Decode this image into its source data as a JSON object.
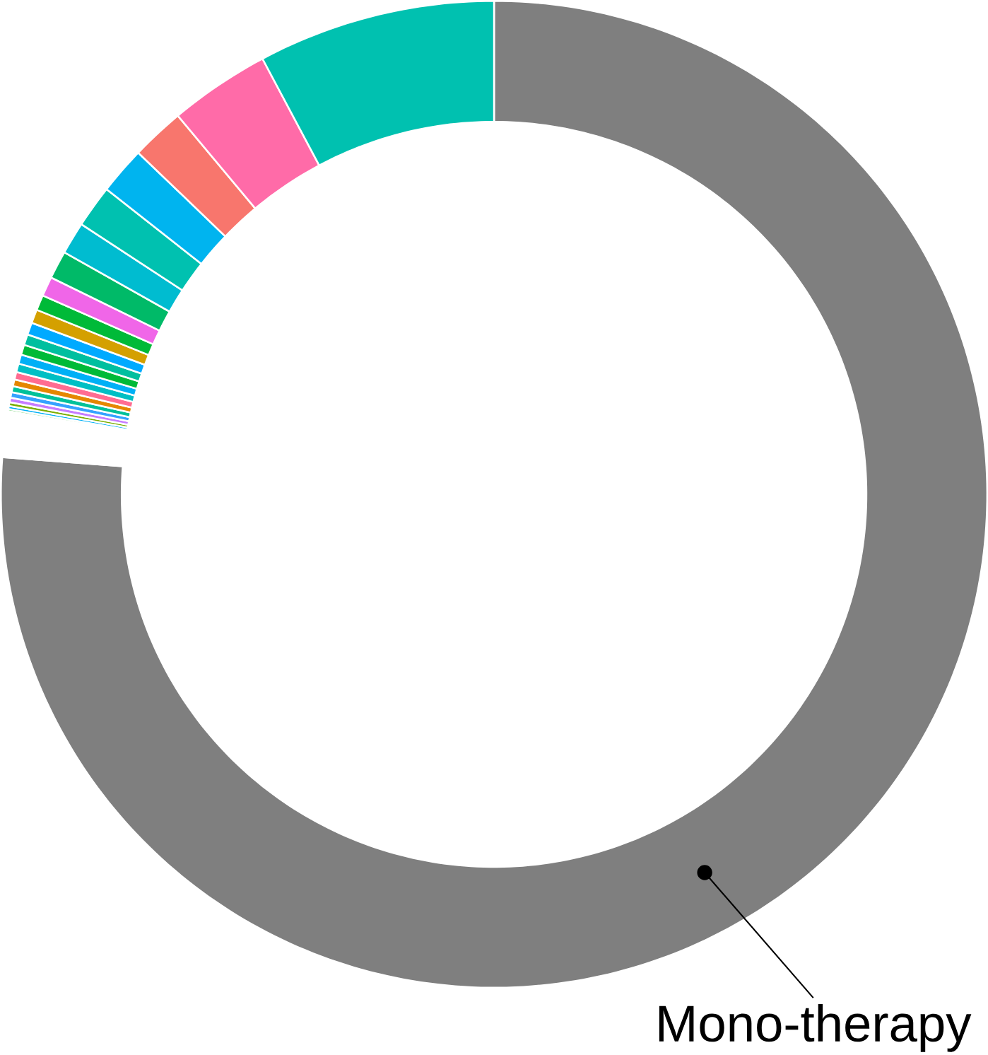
{
  "chart_data": {
    "type": "donut",
    "categories": [
      "Mono-therapy",
      null,
      null,
      null,
      null,
      null,
      null,
      null,
      null,
      null,
      null,
      null,
      null,
      null,
      null,
      null,
      null,
      null,
      null,
      null,
      null,
      null,
      null,
      null,
      null
    ],
    "values": [
      76.2,
      1.5,
      0.07,
      0.1,
      0.12,
      0.15,
      0.18,
      0.2,
      0.22,
      0.25,
      0.28,
      0.3,
      0.33,
      0.35,
      0.4,
      0.45,
      0.5,
      0.64,
      0.92,
      1.06,
      1.39,
      1.56,
      1.75,
      3.3,
      7.78
    ],
    "colors": [
      "#7f7f7f",
      "#ffffff",
      "#66cc66",
      "#00b0f6",
      "#7cae00",
      "#c77cff",
      "#35a2ff",
      "#00c19a",
      "#e58700",
      "#ff6c91",
      "#00bfc4",
      "#00b0f6",
      "#00ba38",
      "#00bf9f",
      "#00aaff",
      "#d4a000",
      "#00ba38",
      "#f066e8",
      "#00ba68",
      "#00bcd0",
      "#00c1b0",
      "#00b4ef",
      "#f8766d",
      "#ff6ba8",
      "#00c1b0"
    ]
  }
}
